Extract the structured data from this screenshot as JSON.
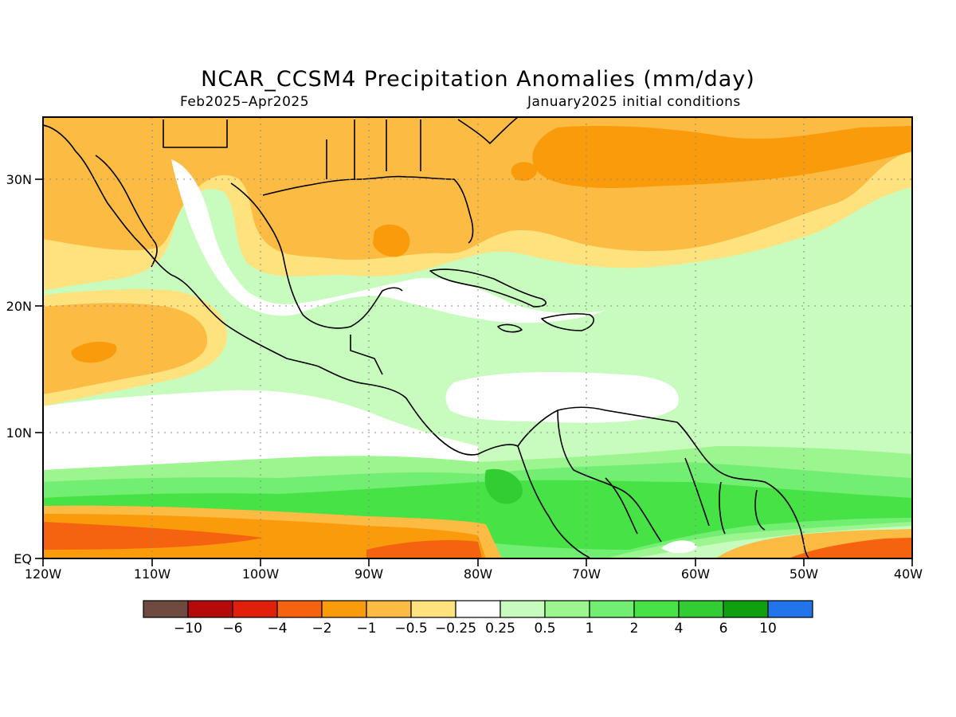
{
  "title": "NCAR_CCSM4 Precipitation Anomalies (mm/day)",
  "period": "Feb2025–Apr2025",
  "init": "January2025 initial conditions",
  "axes": {
    "lat_labels": [
      "EQ",
      "10N",
      "20N",
      "30N"
    ],
    "lon_labels": [
      "120W",
      "110W",
      "100W",
      "90W",
      "80W",
      "70W",
      "60W",
      "50W",
      "40W"
    ]
  },
  "legend": {
    "colors": [
      "#6e4a40",
      "#b40a0a",
      "#e0200a",
      "#f66310",
      "#fa9b0c",
      "#fcbb42",
      "#fde27e",
      "#ffffff",
      "#c8fcbe",
      "#9cf58f",
      "#72ee72",
      "#46e246",
      "#32cd32",
      "#0fa00f",
      "#2274ea"
    ],
    "labels": [
      "−10",
      "−6",
      "−4",
      "−2",
      "−1",
      "−0.5",
      "−0.25",
      "0.25",
      "0.5",
      "1",
      "2",
      "4",
      "6",
      "10"
    ]
  }
}
